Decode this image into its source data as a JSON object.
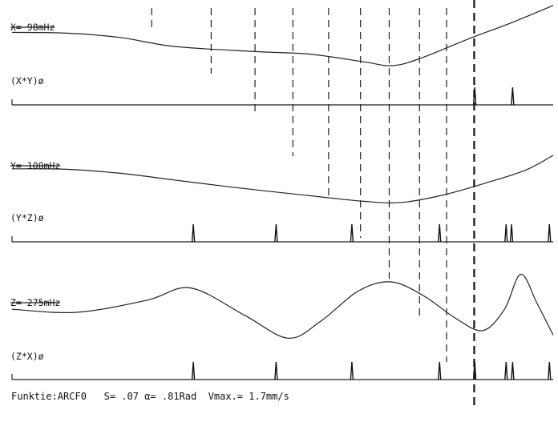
{
  "chart_data": {
    "type": "line",
    "title": "",
    "xlabel": "",
    "ylabel": "",
    "xlim": [
      0,
      100
    ],
    "series": [
      {
        "name": "X= 98mHz",
        "values": [
          [
            0,
            0.3
          ],
          [
            10,
            0.27
          ],
          [
            20,
            0.1
          ],
          [
            30,
            -0.25
          ],
          [
            45,
            -0.45
          ],
          [
            55,
            -0.55
          ],
          [
            65,
            -0.85
          ],
          [
            70,
            -1.0
          ],
          [
            75,
            -0.75
          ],
          [
            85,
            0.1
          ],
          [
            92,
            0.65
          ],
          [
            100,
            1.35
          ]
        ]
      },
      {
        "name": "Y= 100mHz",
        "values": [
          [
            0,
            0.4
          ],
          [
            10,
            0.38
          ],
          [
            20,
            0.2
          ],
          [
            30,
            -0.1
          ],
          [
            40,
            -0.4
          ],
          [
            55,
            -0.8
          ],
          [
            65,
            -1.05
          ],
          [
            72,
            -1.1
          ],
          [
            80,
            -0.75
          ],
          [
            88,
            -0.2
          ],
          [
            95,
            0.35
          ],
          [
            100,
            1.0
          ]
        ]
      },
      {
        "name": "Z= 275mHz",
        "values": [
          [
            0,
            0.1
          ],
          [
            12,
            0.0
          ],
          [
            25,
            0.4
          ],
          [
            33,
            0.8
          ],
          [
            43,
            -0.1
          ],
          [
            51,
            -0.85
          ],
          [
            57,
            -0.3
          ],
          [
            64,
            0.7
          ],
          [
            70,
            1.0
          ],
          [
            76,
            0.55
          ],
          [
            82,
            -0.2
          ],
          [
            87,
            -0.6
          ],
          [
            91,
            0.1
          ],
          [
            94,
            1.25
          ],
          [
            97,
            0.3
          ],
          [
            100,
            -0.75
          ]
        ]
      }
    ],
    "pulse_rows": [
      {
        "name": "(X*Y)ø",
        "x": [
          85.5,
          92.5
        ]
      },
      {
        "name": "(Y*Z)ø",
        "x": [
          33.5,
          48.8,
          62.8,
          79.0,
          91.3,
          92.3,
          99.3
        ]
      },
      {
        "name": "(Z*X)ø",
        "x": [
          33.5,
          48.8,
          62.8,
          79.0,
          85.5,
          91.3,
          92.5,
          99.3
        ]
      }
    ],
    "guide_lines_x": [
      25.8,
      36.8,
      44.9,
      51.9,
      58.5,
      64.4,
      69.7,
      75.3,
      80.3,
      85.4
    ]
  },
  "footer": {
    "function": "Funktie:ARCF0",
    "s": "S= .07",
    "alpha": "α= .81Rad",
    "vmax": "Vmax.= 1.7mm/s"
  }
}
